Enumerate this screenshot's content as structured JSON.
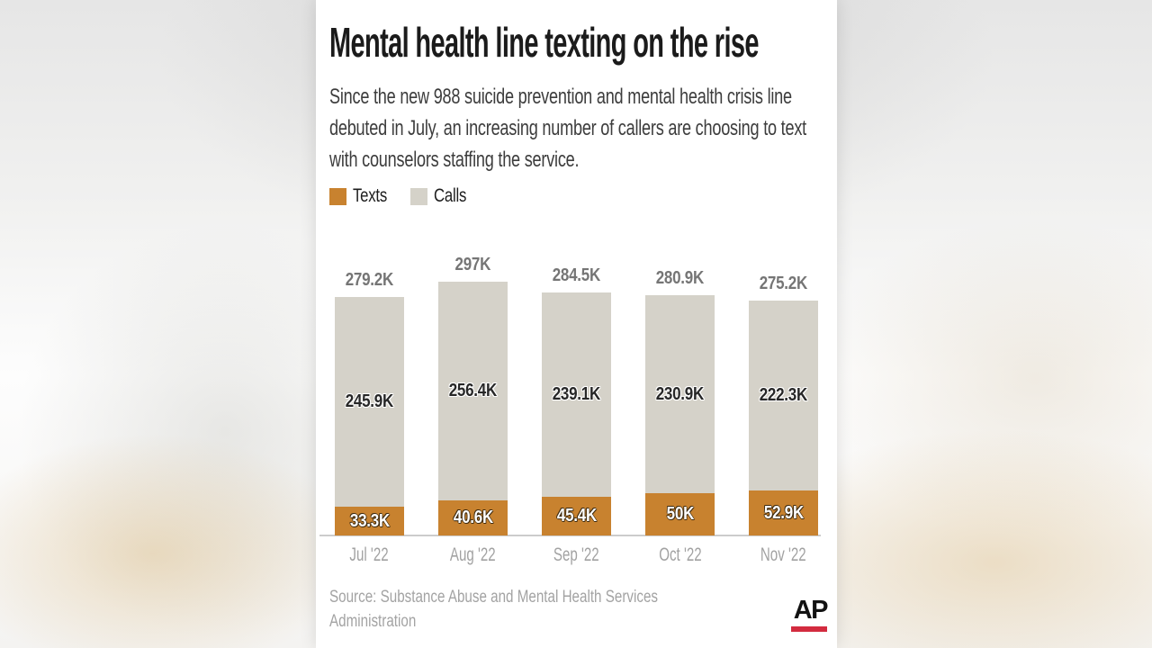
{
  "header": {
    "title": "Mental health line texting on the rise",
    "subtitle": "Since the new 988 suicide prevention and mental health crisis line debuted in July, an increasing number of callers are choosing to text with counselors staffing the service."
  },
  "legend": {
    "items": [
      {
        "label": "Texts",
        "color": "#c8822f"
      },
      {
        "label": "Calls",
        "color": "#d5d2c9"
      }
    ]
  },
  "chart_data": {
    "type": "bar",
    "stacked": true,
    "categories": [
      "Jul '22",
      "Aug '22",
      "Sep '22",
      "Oct '22",
      "Nov '22"
    ],
    "series": [
      {
        "name": "Texts",
        "color": "#c8822f",
        "values": [
          33.3,
          40.6,
          45.4,
          50,
          52.9
        ],
        "value_labels": [
          "33.3K",
          "40.6K",
          "45.4K",
          "50K",
          "52.9K"
        ]
      },
      {
        "name": "Calls",
        "color": "#d5d2c9",
        "values": [
          245.9,
          256.4,
          239.1,
          230.9,
          222.3
        ],
        "value_labels": [
          "245.9K",
          "256.4K",
          "239.1K",
          "230.9K",
          "222.3K"
        ]
      }
    ],
    "totals": [
      279.2,
      297,
      284.5,
      280.9,
      275.2
    ],
    "total_labels": [
      "279.2K",
      "297K",
      "284.5K",
      "280.9K",
      "275.2K"
    ],
    "unit": "thousands",
    "ylim": [
      0,
      297
    ],
    "grid": false,
    "legend_position": "top-left"
  },
  "source": {
    "text": "Source: Substance Abuse and Mental Health Services Administration"
  },
  "footer": {
    "logo": "AP",
    "underline_color": "#d32b3f"
  }
}
